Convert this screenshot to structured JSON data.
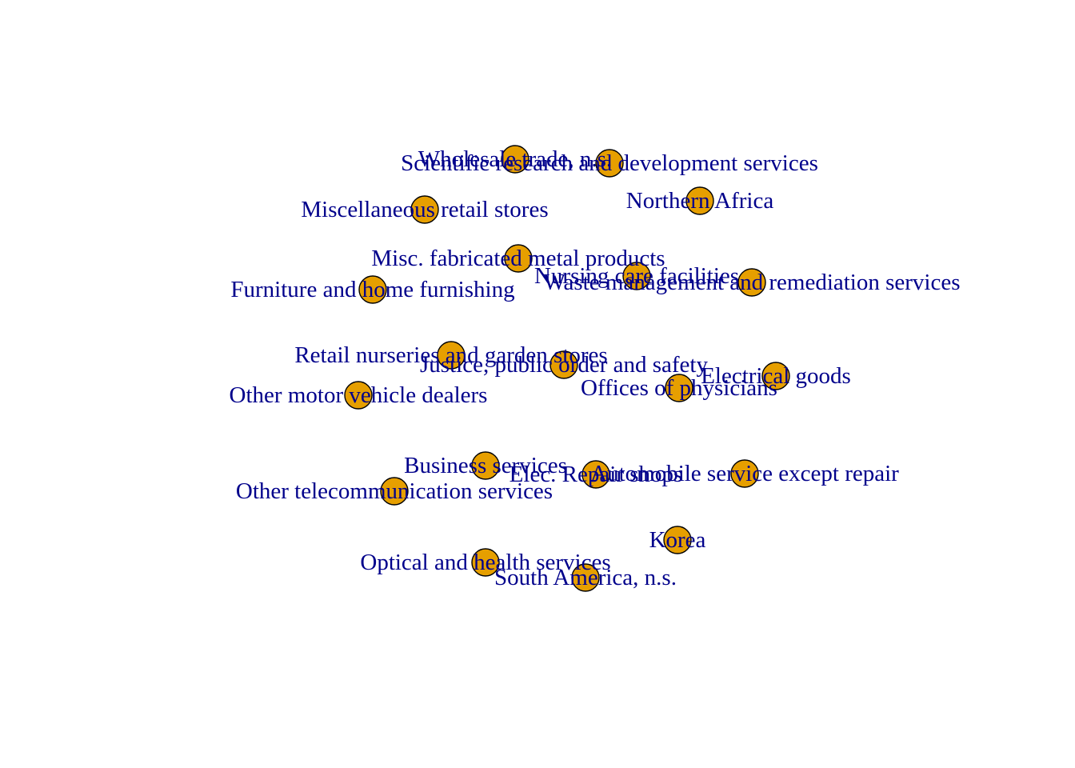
{
  "graph": {
    "node_fill": "#E69F00",
    "node_stroke": "#000000",
    "label_color": "#00008B",
    "nodes": [
      {
        "id": "wholesale-trade",
        "label": "Wholesale trade, n.s."
      },
      {
        "id": "scientific-research",
        "label": "Scientific research and development services"
      },
      {
        "id": "northern-africa",
        "label": "Northern Africa"
      },
      {
        "id": "misc-retail",
        "label": "Miscellaneous retail stores"
      },
      {
        "id": "misc-metal",
        "label": "Misc. fabricated metal products"
      },
      {
        "id": "nursing-care",
        "label": "Nursing care facilities"
      },
      {
        "id": "waste-management",
        "label": "Waste management and remediation services"
      },
      {
        "id": "furniture",
        "label": "Furniture and home furnishing"
      },
      {
        "id": "retail-nurseries",
        "label": "Retail nurseries and garden stores"
      },
      {
        "id": "justice",
        "label": "Justice, public order and safety"
      },
      {
        "id": "electrical-goods",
        "label": "Electrical goods"
      },
      {
        "id": "offices-physicians",
        "label": "Offices of physicians"
      },
      {
        "id": "other-motor-vehicle",
        "label": "Other motor vehicle dealers"
      },
      {
        "id": "business-services",
        "label": "Business services"
      },
      {
        "id": "elec-repair",
        "label": "Elec. Repair shops"
      },
      {
        "id": "automobile-service",
        "label": "Automobile service except repair"
      },
      {
        "id": "other-telecom",
        "label": "Other telecommunication services"
      },
      {
        "id": "korea",
        "label": "Korea"
      },
      {
        "id": "optical-health",
        "label": "Optical and health services"
      },
      {
        "id": "south-america",
        "label": "South America, n.s."
      }
    ]
  }
}
